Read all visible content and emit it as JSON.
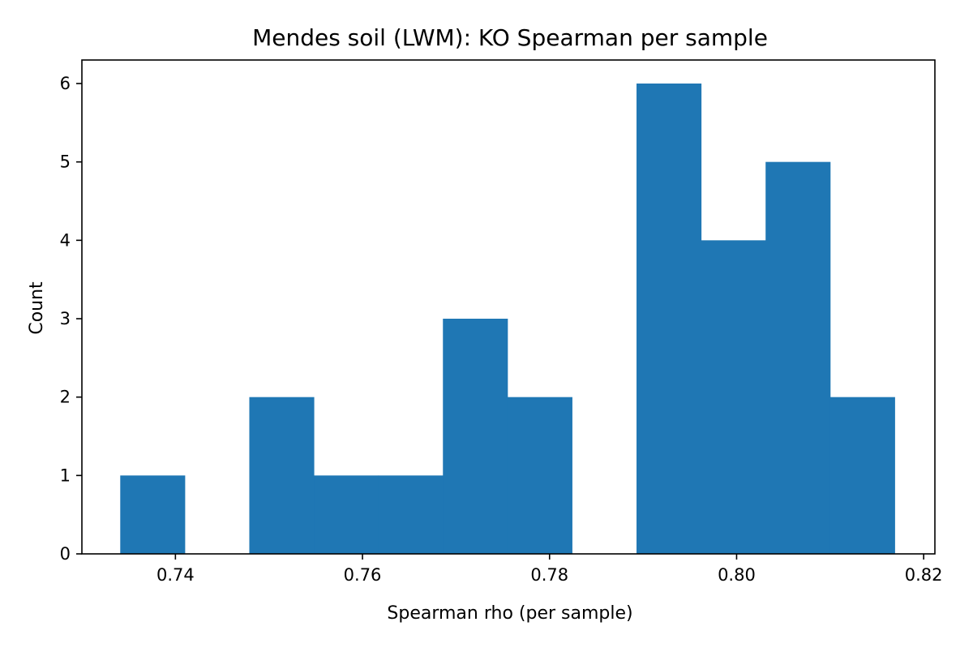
{
  "chart_data": {
    "type": "bar",
    "title": "Mendes soil (LWM): KO Spearman per sample",
    "xlabel": "Spearman rho (per sample)",
    "ylabel": "Count",
    "bin_edges": [
      0.7341,
      0.741,
      0.7479,
      0.7548,
      0.7617,
      0.7686,
      0.7755,
      0.7824,
      0.7893,
      0.7962,
      0.8031,
      0.81,
      0.8169
    ],
    "values": [
      1,
      0,
      2,
      1,
      1,
      3,
      2,
      0,
      6,
      4,
      5,
      2
    ],
    "xlim": [
      0.73,
      0.8212
    ],
    "ylim": [
      0,
      6.3
    ],
    "x_ticks": [
      0.74,
      0.76,
      0.78,
      0.8,
      0.82
    ],
    "x_tick_labels": [
      "0.74",
      "0.76",
      "0.78",
      "0.80",
      "0.82"
    ],
    "y_ticks": [
      0,
      1,
      2,
      3,
      4,
      5,
      6
    ],
    "y_tick_labels": [
      "0",
      "1",
      "2",
      "3",
      "4",
      "5",
      "6"
    ],
    "bar_color": "#1f77b4",
    "grid": false,
    "legend": "none"
  }
}
